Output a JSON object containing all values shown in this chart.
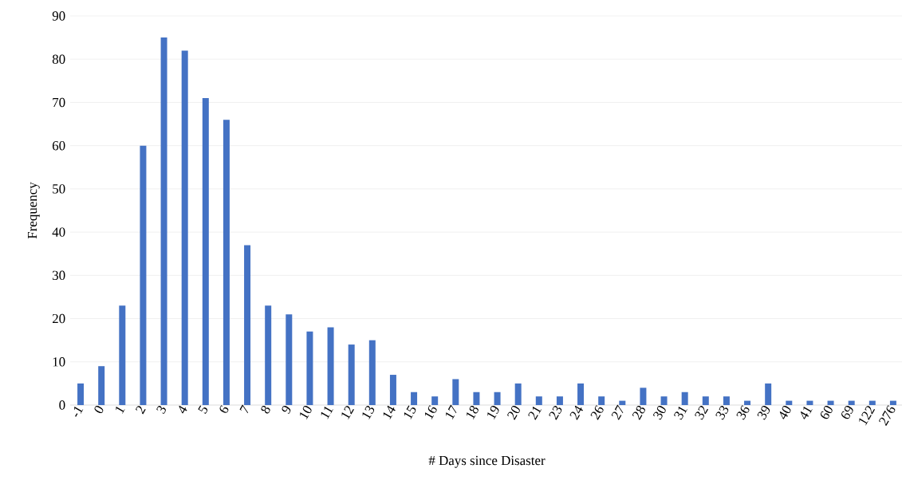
{
  "chart_data": {
    "type": "bar",
    "xlabel": "# Days since Disaster",
    "ylabel": "Frequency",
    "categories": [
      "-1",
      "0",
      "1",
      "2",
      "3",
      "4",
      "5",
      "6",
      "7",
      "8",
      "9",
      "10",
      "11",
      "12",
      "13",
      "14",
      "15",
      "16",
      "17",
      "18",
      "19",
      "20",
      "21",
      "23",
      "24",
      "26",
      "27",
      "28",
      "30",
      "31",
      "32",
      "33",
      "36",
      "39",
      "40",
      "41",
      "60",
      "69",
      "122",
      "276"
    ],
    "values": [
      5,
      9,
      23,
      60,
      85,
      82,
      71,
      66,
      37,
      23,
      21,
      17,
      18,
      14,
      15,
      7,
      3,
      2,
      6,
      3,
      3,
      5,
      2,
      2,
      5,
      2,
      1,
      4,
      2,
      3,
      2,
      2,
      1,
      5,
      1,
      1,
      1,
      1,
      1,
      1
    ],
    "color": "#4472c4",
    "ylim": [
      0,
      90
    ],
    "yticks": [
      0,
      10,
      20,
      30,
      40,
      50,
      60,
      70,
      80,
      90
    ],
    "grid": "y"
  }
}
